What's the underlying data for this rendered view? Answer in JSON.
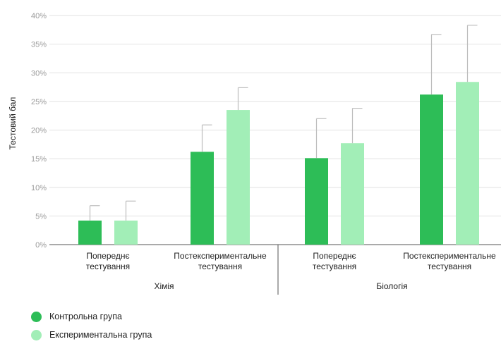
{
  "chart_data": {
    "type": "bar",
    "ylabel": "Тестовий бал",
    "ylim": [
      0,
      40
    ],
    "y_ticks": [
      "0%",
      "5%",
      "10%",
      "15%",
      "20%",
      "25%",
      "30%",
      "35%",
      "40%"
    ],
    "grid": true,
    "legend_position": "bottom-left",
    "groups": [
      {
        "name": "Хімія",
        "categories": [
          [
            "Попереднє",
            "тестування"
          ],
          [
            "Постекспериментальне",
            "тестування"
          ]
        ]
      },
      {
        "name": "Біологія",
        "categories": [
          [
            "Попереднє",
            "тестування"
          ],
          [
            "Постекспериментальне",
            "тестування"
          ]
        ]
      }
    ],
    "series": [
      {
        "name": "Контрольна група",
        "color": "#2dbd57",
        "values": [
          4.2,
          16.2,
          15.1,
          26.2
        ],
        "error_upper": [
          6.8,
          20.9,
          22.0,
          36.7
        ]
      },
      {
        "name": "Експериментальна група",
        "color": "#a2eeb7",
        "values": [
          4.2,
          23.5,
          17.7,
          28.4
        ],
        "error_upper": [
          7.6,
          27.4,
          23.8,
          38.3
        ]
      }
    ]
  }
}
